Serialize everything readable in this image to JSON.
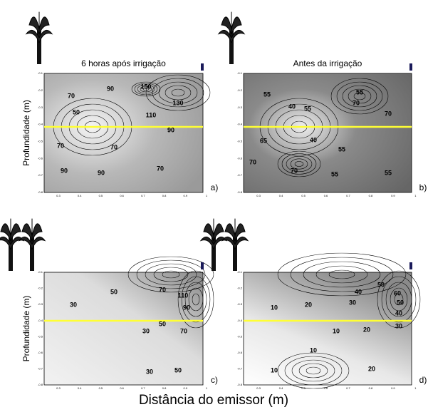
{
  "panels": [
    {
      "title": "6 horas após irrigação",
      "letter": "a)",
      "contour_labels": [
        "90",
        "150",
        "130",
        "70",
        "50",
        "110",
        "90",
        "70",
        "70",
        "90",
        "90",
        "70"
      ]
    },
    {
      "title": "Antes da irrigação",
      "letter": "b)",
      "contour_labels": [
        "55",
        "40",
        "55",
        "55",
        "70",
        "70",
        "65",
        "40",
        "55",
        "70",
        "70",
        "55",
        "55"
      ]
    },
    {
      "title": "",
      "letter": "c)",
      "contour_labels": [
        "70",
        "50",
        "110",
        "30",
        "90",
        "50",
        "70",
        "30",
        "30",
        "50"
      ]
    },
    {
      "title": "",
      "letter": "d)",
      "contour_labels": [
        "50",
        "40",
        "60",
        "30",
        "50",
        "10",
        "20",
        "40",
        "10",
        "20",
        "30",
        "10",
        "10",
        "20"
      ]
    }
  ],
  "x_ticks": [
    "0.3",
    "0.4",
    "0.5",
    "0.6",
    "0.7",
    "0.8",
    "0.9",
    "1"
  ],
  "y_ticks": [
    "-0.1",
    "-0.2",
    "-0.3",
    "-0.4",
    "-0.5",
    "-0.6",
    "-0.7",
    "-0.8"
  ],
  "y_label": "Profundidade (m)",
  "x_label": "Distância do emissor (m)"
}
